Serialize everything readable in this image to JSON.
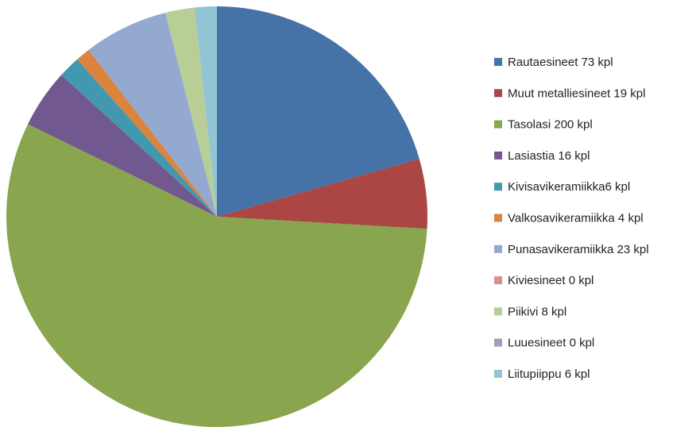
{
  "chart_data": {
    "type": "pie",
    "categories": [
      "Rautaesineet 73 kpl",
      "Muut metalliesineet 19 kpl",
      "Tasolasi 200 kpl",
      "Lasiastia 16 kpl",
      "Kivisavikeramiikka6 kpl",
      "Valkosavikeramiikka 4 kpl",
      "Punasavikeramiikka 23 kpl",
      "Kiviesineet 0 kpl",
      "Piikivi 8 kpl",
      "Luuesineet 0 kpl",
      "Liitupiippu 6 kpl"
    ],
    "values": [
      73,
      19,
      200,
      16,
      6,
      4,
      23,
      0,
      8,
      0,
      6
    ],
    "colors": [
      "#4572a7",
      "#aa4643",
      "#89a54e",
      "#71588f",
      "#4198af",
      "#db843d",
      "#93a9cf",
      "#d19392",
      "#b9cd96",
      "#a99bbd",
      "#92c5d3"
    ],
    "legend": "right"
  }
}
